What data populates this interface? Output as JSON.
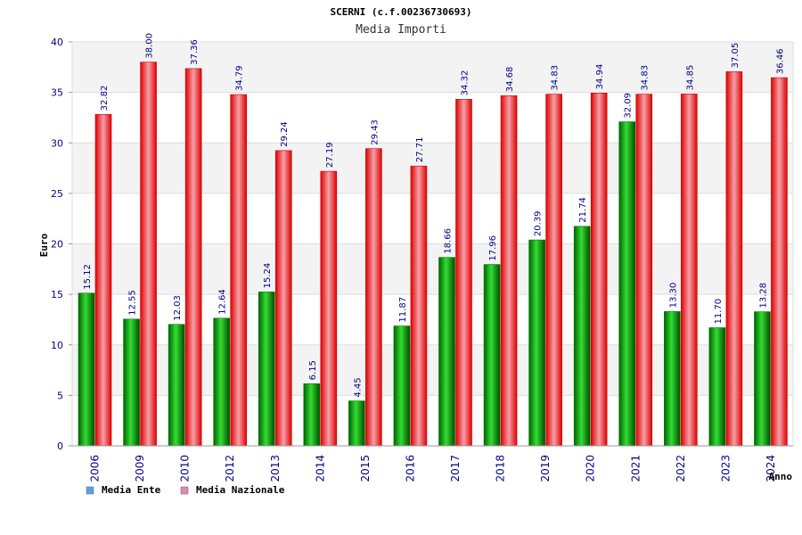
{
  "chart_data": {
    "type": "bar",
    "title": "SCERNI (c.f.00236730693)",
    "subtitle": "Media Importi",
    "xlabel": "Anno",
    "ylabel": "Euro",
    "ylim": [
      0,
      40
    ],
    "yticks": [
      0,
      5,
      10,
      15,
      20,
      25,
      30,
      35,
      40
    ],
    "grid": true,
    "legend_position": "bottom-left",
    "categories": [
      "2006",
      "2009",
      "2010",
      "2012",
      "2013",
      "2014",
      "2015",
      "2016",
      "2017",
      "2018",
      "2019",
      "2020",
      "2021",
      "2022",
      "2023",
      "2024"
    ],
    "series": [
      {
        "name": "Media Ente",
        "color": "#00aa00",
        "legend_color": "#5aa0e6",
        "values": [
          15.12,
          12.55,
          12.03,
          12.64,
          15.24,
          6.15,
          4.45,
          11.87,
          18.66,
          17.96,
          20.39,
          21.74,
          32.09,
          13.3,
          11.7,
          13.28
        ],
        "labels": [
          "15.12",
          "12.55",
          "12.03",
          "12.64",
          "15.24",
          "6.15",
          "4.45",
          "11.87",
          "18.66",
          "17.96",
          "20.39",
          "21.74",
          "32.09",
          "13.30",
          "11.70",
          "13.28"
        ]
      },
      {
        "name": "Media Nazionale",
        "color": "#e80000",
        "legend_color": "#e28ab0",
        "values": [
          32.82,
          38.0,
          37.36,
          34.79,
          29.24,
          27.19,
          29.43,
          27.71,
          34.32,
          34.68,
          34.83,
          34.94,
          34.83,
          34.85,
          37.05,
          36.46
        ],
        "labels": [
          "32.82",
          "38.00",
          "37.36",
          "34.79",
          "29.24",
          "27.19",
          "29.43",
          "27.71",
          "34.32",
          "34.68",
          "34.83",
          "34.94",
          "34.83",
          "34.85",
          "37.05",
          "36.46"
        ]
      }
    ]
  }
}
